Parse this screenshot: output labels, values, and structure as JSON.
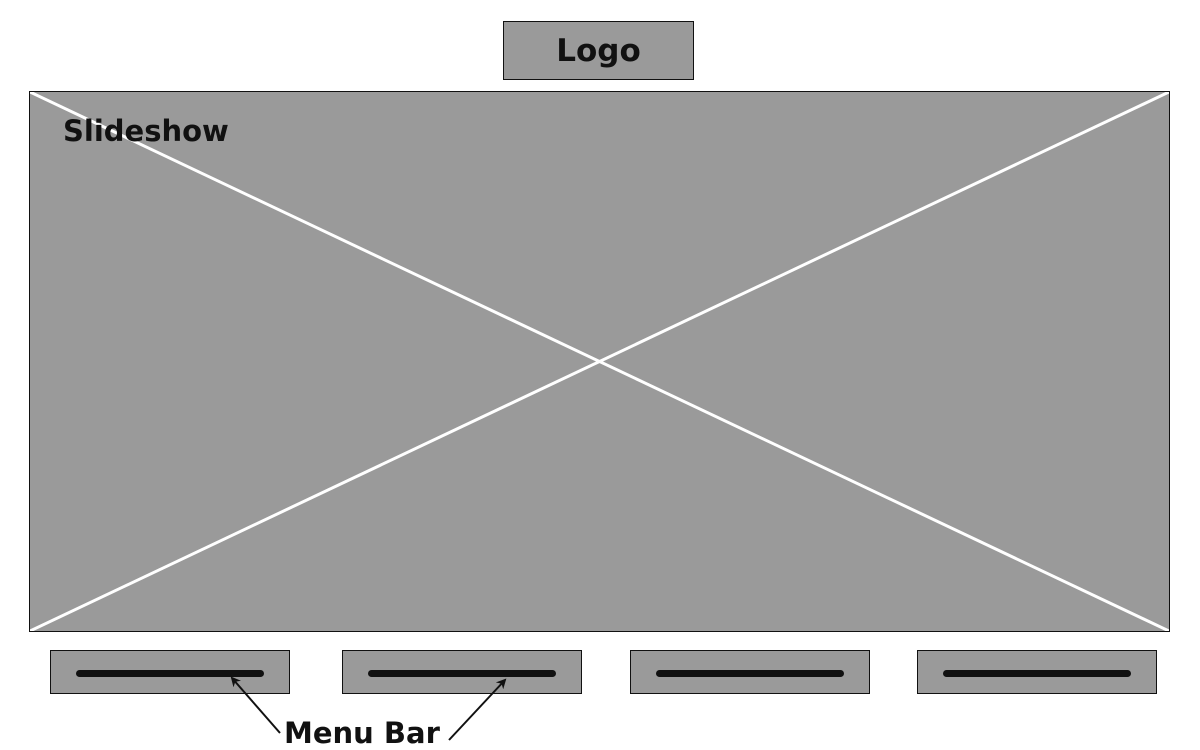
{
  "logo": {
    "label": "Logo"
  },
  "slideshow": {
    "label": "Slideshow"
  },
  "menu": {
    "items": [
      {
        "id": "menu-item-1"
      },
      {
        "id": "menu-item-2"
      },
      {
        "id": "menu-item-3"
      },
      {
        "id": "menu-item-4"
      }
    ],
    "annotation": "Menu Bar"
  },
  "colors": {
    "placeholder_fill": "#9a9a9a",
    "outline": "#111111",
    "cross_lines": "#ffffff"
  }
}
